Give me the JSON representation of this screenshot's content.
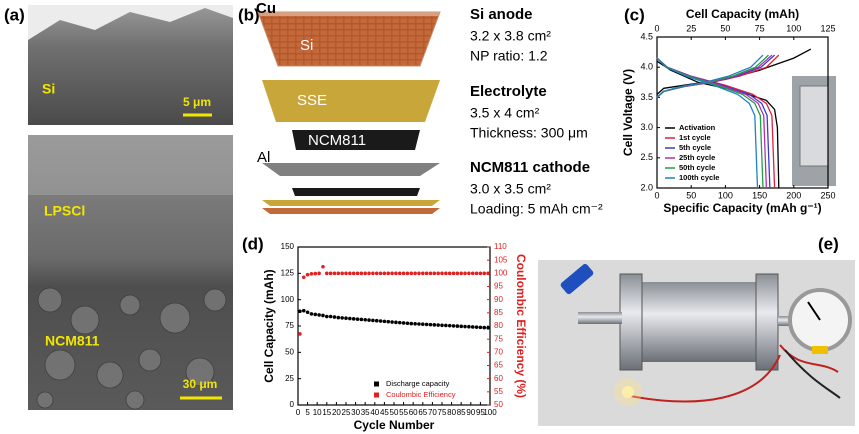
{
  "panel_labels": [
    "(a)",
    "(b)",
    "(c)",
    "(d)",
    "(e)"
  ],
  "panel_a": {
    "top_label": "Si",
    "top_scale": "5 μm",
    "labels": [
      "LPSCl",
      "NCM811"
    ],
    "bottom_scale": "30 μm"
  },
  "panel_b": {
    "layers": [
      "Cu",
      "Si",
      "SSE",
      "NCM811",
      "Al"
    ],
    "specs": [
      {
        "title": "Si anode",
        "lines": [
          "3.2 x 3.8 cm²",
          "NP ratio: 1.2"
        ]
      },
      {
        "title": "Electrolyte",
        "lines": [
          "3.5 x 4 cm²",
          "Thickness: 300 μm"
        ]
      },
      {
        "title": "NCM811 cathode",
        "lines": [
          "3.0 x 3.5 cm²",
          "Loading: 5 mAh cm⁻²"
        ]
      }
    ]
  },
  "chart_data": [
    {
      "type": "line",
      "x_label": "Specific Capacity (mAh g⁻¹)",
      "x2_label": "Cell Capacity (mAh)",
      "y_label": "Cell Voltage (V)",
      "xlim": [
        0,
        250
      ],
      "xticks": [
        0,
        50,
        100,
        150,
        200,
        250
      ],
      "x2lim": [
        0,
        125
      ],
      "x2ticks": [
        0,
        25,
        50,
        75,
        100,
        125
      ],
      "ylim": [
        2.0,
        4.5
      ],
      "yticks": [
        {
          "value": 2,
          "label": "2.0"
        },
        {
          "value": 2.5,
          "label": "2.5"
        },
        {
          "value": 3,
          "label": "3.0"
        },
        {
          "value": 3.5,
          "label": "3.5"
        },
        {
          "value": 4,
          "label": "4.0"
        },
        {
          "value": 4.5,
          "label": "4.5"
        }
      ],
      "legend": "lower left",
      "series": [
        {
          "name": "Activation",
          "color": "#000000",
          "x": [
            0,
            10,
            50,
            100,
            150,
            200,
            225,
            null,
            0,
            20,
            60,
            120,
            160,
            172,
            176,
            178
          ],
          "values": [
            3.55,
            3.65,
            3.72,
            3.8,
            3.95,
            4.15,
            4.3,
            null,
            4.1,
            3.95,
            3.75,
            3.6,
            3.45,
            3.3,
            3.0,
            2.0
          ]
        },
        {
          "name": "1st cycle",
          "color": "#e0203a",
          "x": [
            0,
            10,
            40,
            80,
            120,
            160,
            178,
            null,
            0,
            15,
            50,
            100,
            140,
            160,
            168,
            172
          ],
          "values": [
            3.5,
            3.6,
            3.68,
            3.75,
            3.85,
            4.0,
            4.2,
            null,
            4.15,
            4.0,
            3.85,
            3.7,
            3.55,
            3.4,
            3.2,
            2.0
          ]
        },
        {
          "name": "5th cycle",
          "color": "#3a3ad0",
          "x": [
            0,
            10,
            40,
            78,
            116,
            152,
            172,
            null,
            0,
            15,
            50,
            95,
            135,
            153,
            161,
            165
          ],
          "values": [
            3.5,
            3.6,
            3.68,
            3.75,
            3.85,
            4.0,
            4.2,
            null,
            4.15,
            4.0,
            3.85,
            3.7,
            3.55,
            3.4,
            3.2,
            2.0
          ]
        },
        {
          "name": "25th cycle",
          "color": "#b030b0",
          "x": [
            0,
            10,
            38,
            76,
            113,
            148,
            168,
            null,
            0,
            15,
            48,
            92,
            130,
            148,
            156,
            160
          ],
          "values": [
            3.5,
            3.6,
            3.68,
            3.75,
            3.85,
            4.0,
            4.2,
            null,
            4.15,
            4.0,
            3.85,
            3.7,
            3.55,
            3.4,
            3.2,
            2.0
          ]
        },
        {
          "name": "50th cycle",
          "color": "#20a040",
          "x": [
            0,
            10,
            37,
            73,
            110,
            144,
            163,
            null,
            0,
            14,
            46,
            88,
            125,
            143,
            151,
            155
          ],
          "values": [
            3.5,
            3.6,
            3.68,
            3.75,
            3.85,
            4.0,
            4.2,
            null,
            4.15,
            4.0,
            3.85,
            3.7,
            3.55,
            3.4,
            3.2,
            2.0
          ]
        },
        {
          "name": "100th cycle",
          "color": "#2080c0",
          "x": [
            0,
            9,
            35,
            70,
            104,
            137,
            155,
            null,
            0,
            13,
            43,
            83,
            118,
            135,
            143,
            147
          ],
          "values": [
            3.5,
            3.6,
            3.68,
            3.75,
            3.85,
            4.0,
            4.2,
            null,
            4.15,
            4.0,
            3.85,
            3.7,
            3.55,
            3.4,
            3.2,
            2.0
          ]
        }
      ]
    },
    {
      "type": "scatter",
      "x_label": "Cycle Number",
      "y_label": "Cell Capacity (mAh)",
      "y2_label": "Coulombic Efficiency (%)",
      "xlim": [
        0,
        100
      ],
      "xticks": [
        0,
        5,
        10,
        15,
        20,
        25,
        30,
        35,
        40,
        45,
        50,
        55,
        60,
        65,
        70,
        75,
        80,
        85,
        90,
        95,
        100
      ],
      "ylim": [
        0,
        150
      ],
      "yticks": [
        0,
        25,
        50,
        75,
        100,
        125,
        150
      ],
      "y2lim": [
        50,
        110
      ],
      "y2ticks": [
        50,
        55,
        60,
        65,
        70,
        75,
        80,
        85,
        90,
        95,
        100,
        105,
        110
      ],
      "legend": "lower right",
      "x": [
        1,
        3,
        5,
        7,
        9,
        11,
        13,
        15,
        17,
        19,
        21,
        23,
        25,
        27,
        29,
        31,
        33,
        35,
        37,
        39,
        41,
        43,
        45,
        47,
        49,
        51,
        53,
        55,
        57,
        59,
        61,
        63,
        65,
        67,
        69,
        71,
        73,
        75,
        77,
        79,
        81,
        83,
        85,
        87,
        89,
        91,
        93,
        95,
        97,
        99
      ],
      "series": [
        {
          "name": "Discharge capacity",
          "color": "#000000",
          "values": [
            89,
            89.5,
            88,
            86.5,
            86,
            85.5,
            85,
            84,
            84,
            83.5,
            83,
            82.7,
            82.4,
            82.1,
            81.8,
            81.5,
            81.2,
            80.9,
            80.6,
            80.3,
            80,
            79.7,
            79.4,
            79.1,
            78.8,
            78.5,
            78.2,
            77.9,
            77.6,
            77.3,
            77.1,
            76.9,
            76.7,
            76.5,
            76.3,
            76.1,
            75.9,
            75.7,
            75.5,
            75.3,
            75.1,
            74.9,
            74.7,
            74.5,
            74.3,
            74.1,
            73.9,
            73.7,
            73.5,
            73.3
          ]
        },
        {
          "name": "Coulombic Efficiency",
          "color": "#e02020",
          "axis": "y2",
          "values": [
            77,
            98.5,
            99.5,
            99.8,
            99.9,
            100,
            102.5,
            100,
            100,
            100,
            100,
            100,
            100,
            100,
            100,
            100,
            100,
            100,
            100,
            100,
            100,
            100,
            100,
            100,
            100,
            100,
            100,
            100,
            100,
            100,
            100,
            100,
            100,
            100,
            100,
            100,
            100,
            100,
            100,
            100,
            100,
            100,
            100,
            100,
            100,
            100,
            100,
            100,
            100,
            100
          ]
        }
      ]
    }
  ]
}
